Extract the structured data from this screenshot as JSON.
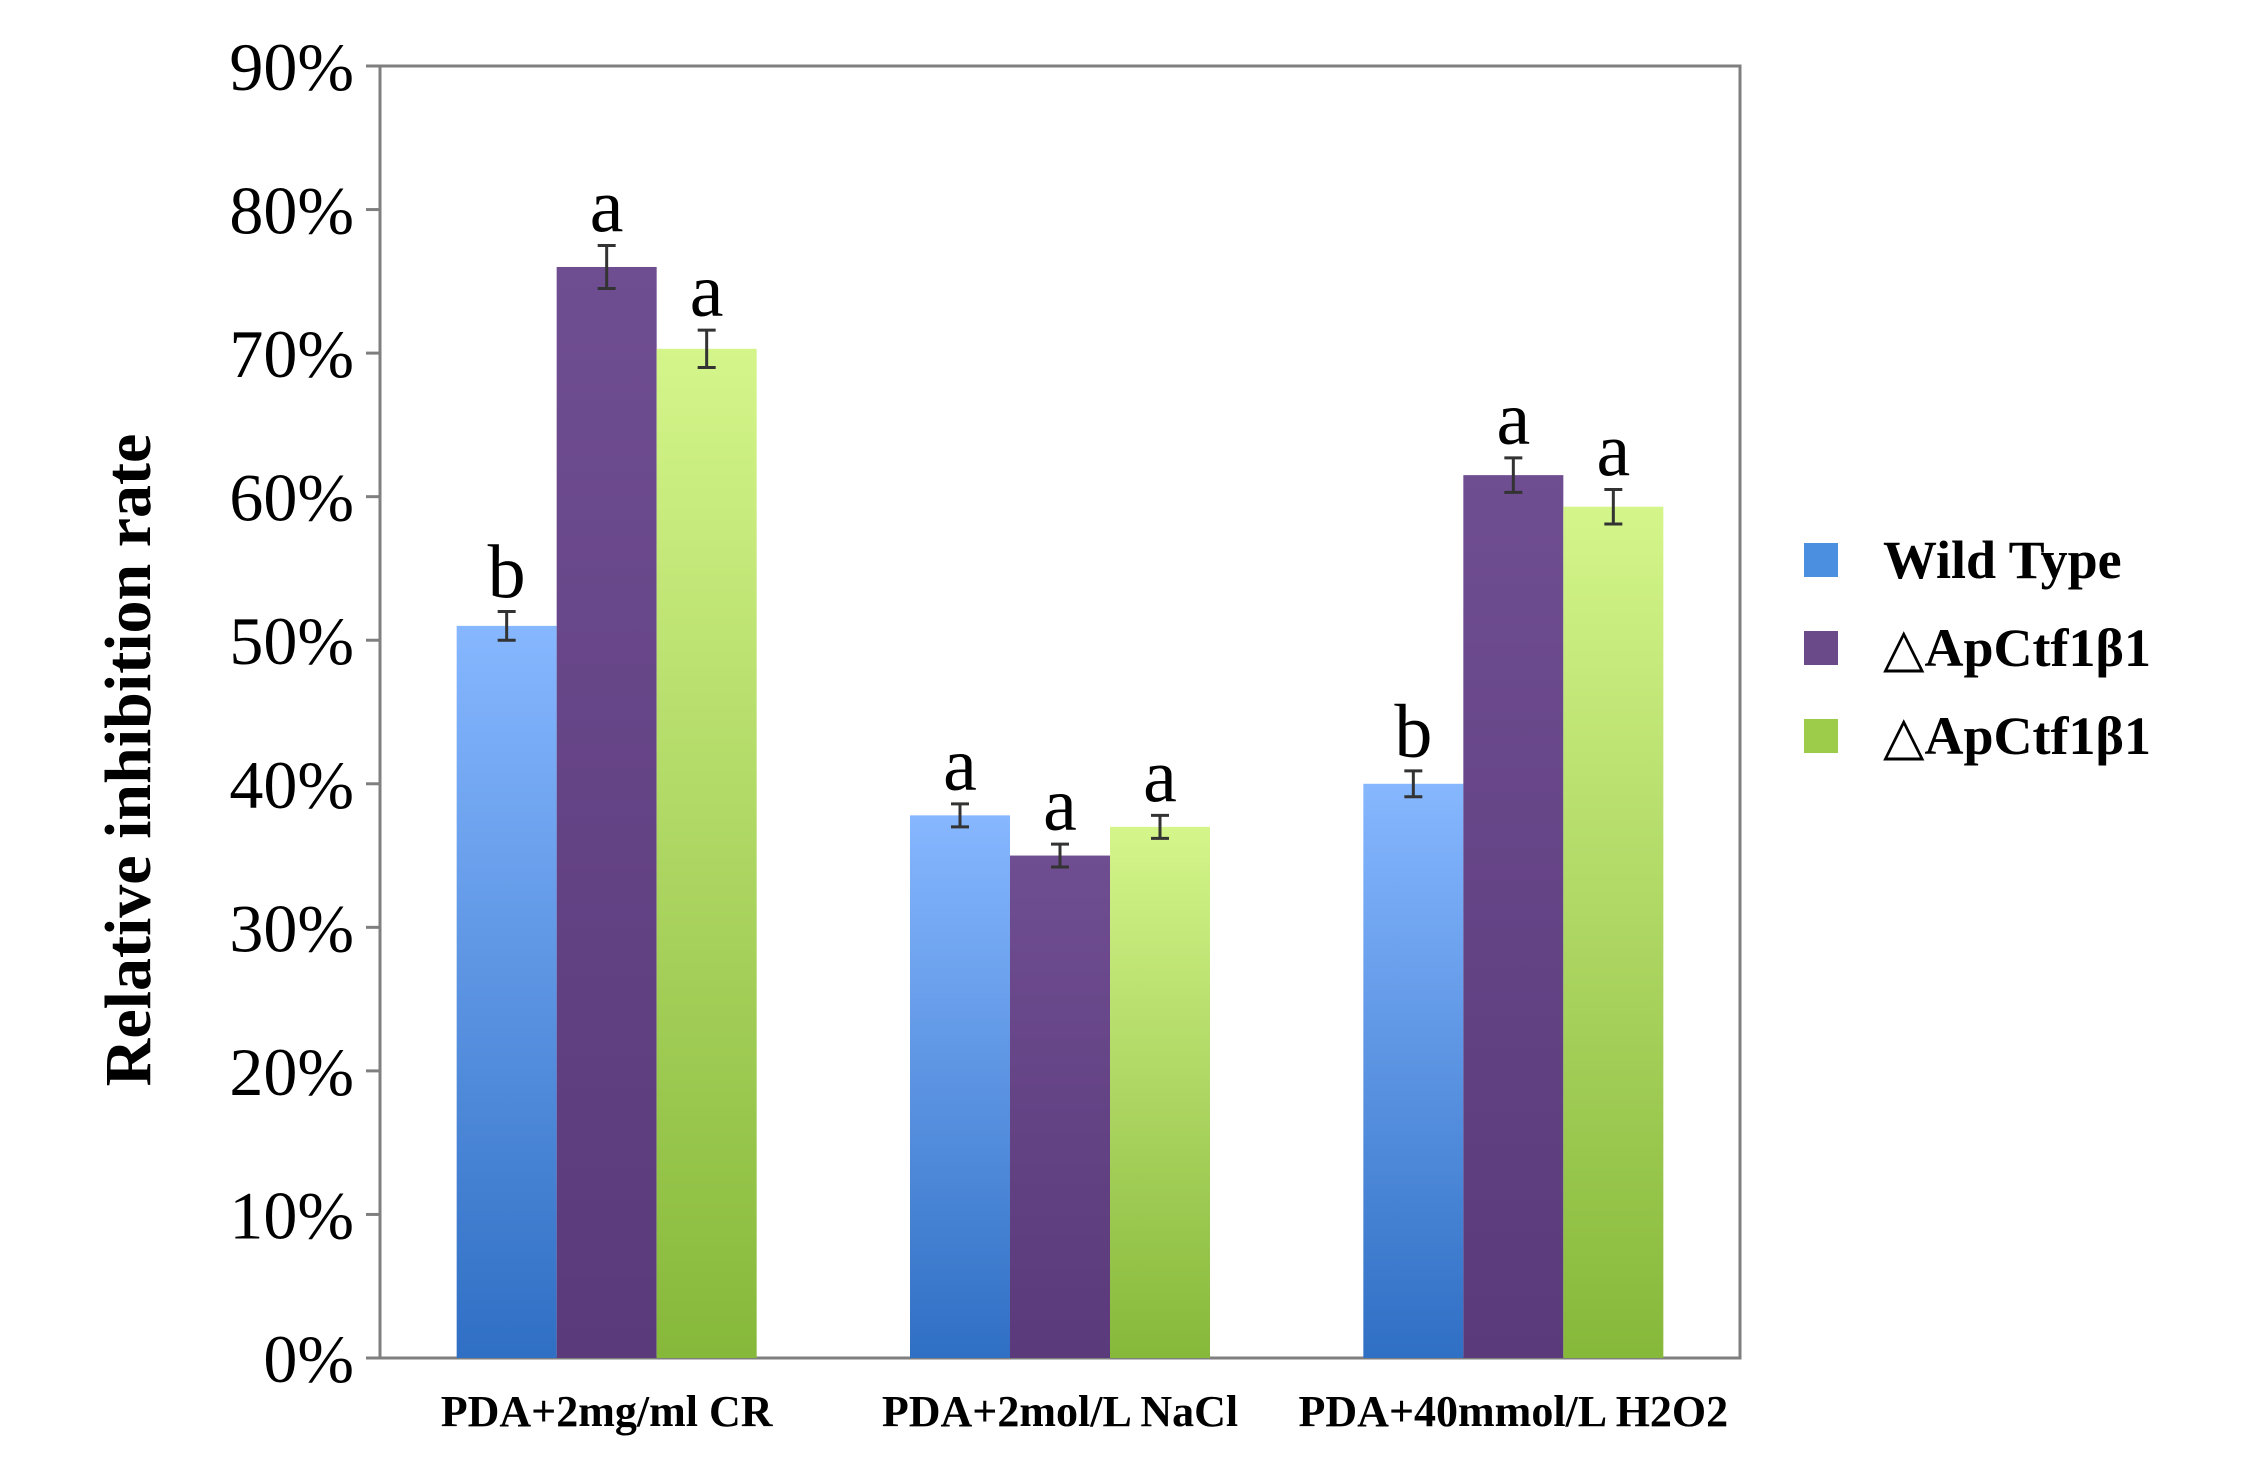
{
  "chart_data": {
    "type": "bar",
    "title": "",
    "xlabel": "",
    "ylabel": "Relative inhibition rate",
    "ylim": [
      0,
      90
    ],
    "yticks": [
      "0%",
      "10%",
      "20%",
      "30%",
      "40%",
      "50%",
      "60%",
      "70%",
      "80%",
      "90%"
    ],
    "grid": false,
    "legend_position": "right",
    "categories": [
      "PDA+2mg/ml CR",
      "PDA+2mol/L NaCl",
      "PDA+40mmol/L H2O2"
    ],
    "series": [
      {
        "name": "Wild Type",
        "color": "#4a8fe0",
        "values": [
          51,
          37.8,
          40
        ],
        "errors": [
          1.0,
          0.8,
          0.9
        ],
        "labels": [
          "b",
          "a",
          "b"
        ]
      },
      {
        "name": "△ApCtf1β1",
        "color": "#6b4a8a",
        "values": [
          76,
          35,
          61.5
        ],
        "errors": [
          1.5,
          0.8,
          1.2
        ],
        "labels": [
          "a",
          "a",
          "a"
        ]
      },
      {
        "name": "△ApCtf1β1",
        "color": "#9ccc4a",
        "values": [
          70.3,
          37,
          59.3
        ],
        "errors": [
          1.3,
          0.8,
          1.2
        ],
        "labels": [
          "a",
          "a",
          "a"
        ]
      }
    ]
  }
}
